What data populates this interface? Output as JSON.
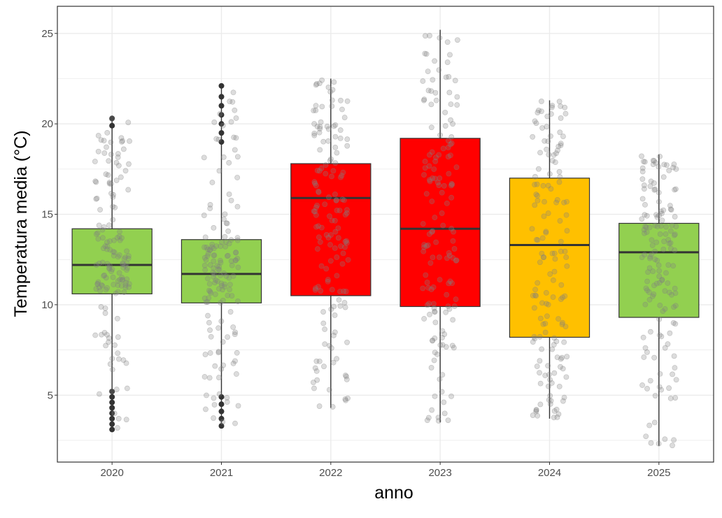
{
  "chart_data": {
    "type": "boxplot",
    "xlabel": "anno",
    "ylabel": "Temperatura media (°C)",
    "ylim": [
      1.3,
      26.5
    ],
    "yticks": [
      5,
      10,
      15,
      20,
      25
    ],
    "grid": true,
    "legend": "none",
    "colors": {
      "panel_border": "#333333",
      "grid": "#ebebeb",
      "median": "#333333",
      "jitter": "#808080"
    },
    "categories": [
      "2020",
      "2021",
      "2022",
      "2023",
      "2024",
      "2025"
    ],
    "boxes": [
      {
        "year": "2020",
        "q1": 10.6,
        "median": 12.2,
        "q3": 14.2,
        "whisker_low": 3.0,
        "whisker_high": 20.3,
        "color": "#92d050",
        "outliers": [
          3.1,
          3.4,
          3.7,
          4.0,
          4.3,
          4.6,
          4.9,
          5.2,
          19.9,
          20.3
        ]
      },
      {
        "year": "2021",
        "q1": 10.1,
        "median": 11.7,
        "q3": 13.6,
        "whisker_low": 3.3,
        "whisker_high": 22.1,
        "color": "#92d050",
        "outliers": [
          3.3,
          3.7,
          4.1,
          4.5,
          4.9,
          19.0,
          19.5,
          20.0,
          20.5,
          21.0,
          21.5,
          22.1
        ]
      },
      {
        "year": "2022",
        "q1": 10.5,
        "median": 15.9,
        "q3": 17.8,
        "whisker_low": 4.3,
        "whisker_high": 22.5,
        "color": "#ff0000",
        "outliers": []
      },
      {
        "year": "2023",
        "q1": 9.9,
        "median": 14.2,
        "q3": 19.2,
        "whisker_low": 3.5,
        "whisker_high": 25.2,
        "color": "#ff0000",
        "outliers": []
      },
      {
        "year": "2024",
        "q1": 8.2,
        "median": 13.3,
        "q3": 17.0,
        "whisker_low": 3.7,
        "whisker_high": 21.3,
        "color": "#ffc000",
        "outliers": []
      },
      {
        "year": "2025",
        "q1": 9.3,
        "median": 12.9,
        "q3": 14.5,
        "whisker_low": 2.2,
        "whisker_high": 18.3,
        "color": "#92d050",
        "outliers": []
      }
    ]
  }
}
